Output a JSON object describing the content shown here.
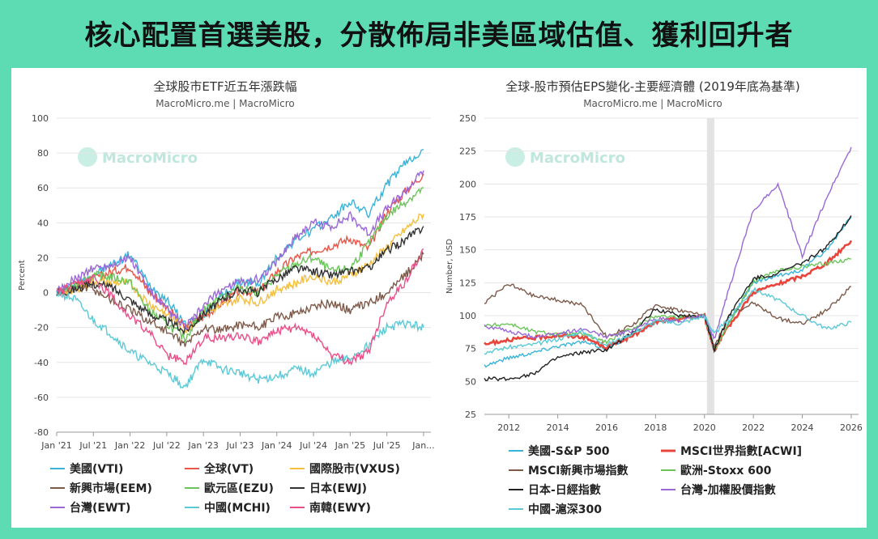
{
  "headline": "核心配置首選美股，分散佈局非美區域估值、獲利回升者",
  "watermark": "MacroMicro",
  "chart_data": [
    {
      "type": "line",
      "title": "全球股市ETF近五年漲跌幅",
      "subtitle": "MacroMicro.me | MacroMicro",
      "ylabel": "Percent",
      "xlabel": "",
      "ylim": [
        -80,
        100
      ],
      "yticks": [
        100,
        80,
        60,
        40,
        20,
        0,
        -20,
        -40,
        -60,
        -80
      ],
      "x_tick_labels": [
        "Jan '21",
        "Jul '21",
        "Jan '22",
        "Jul '22",
        "Jan '23",
        "Jul '23",
        "Jan '24",
        "Jul '24",
        "Jan '25",
        "Jul '25",
        "Jan..."
      ],
      "x": [
        2021.0,
        2021.25,
        2021.5,
        2021.75,
        2022.0,
        2022.25,
        2022.5,
        2022.75,
        2023.0,
        2023.25,
        2023.5,
        2023.75,
        2024.0,
        2024.25,
        2024.5,
        2024.75,
        2025.0,
        2025.25,
        2025.5,
        2025.75,
        2026.0
      ],
      "xlim": [
        2021.0,
        2026.1
      ],
      "legend_position": "bottom",
      "series": [
        {
          "name": "美國(VTI)",
          "color": "#39b3d8",
          "values": [
            0,
            4,
            10,
            16,
            22,
            5,
            -4,
            -18,
            -13,
            -2,
            6,
            5,
            20,
            30,
            36,
            43,
            52,
            45,
            62,
            74,
            82
          ]
        },
        {
          "name": "全球(VT)",
          "color": "#e8564a",
          "values": [
            0,
            3,
            8,
            12,
            15,
            1,
            -8,
            -20,
            -14,
            -6,
            1,
            0,
            12,
            20,
            24,
            27,
            31,
            25,
            46,
            58,
            68
          ]
        },
        {
          "name": "國際股市(VXUS)",
          "color": "#f4bf3e",
          "values": [
            0,
            2,
            6,
            6,
            5,
            -6,
            -12,
            -22,
            -12,
            -8,
            -3,
            -6,
            2,
            5,
            10,
            6,
            10,
            16,
            26,
            36,
            45
          ]
        },
        {
          "name": "新興市場(EEM)",
          "color": "#7d5a4a",
          "values": [
            0,
            4,
            2,
            -4,
            -10,
            -16,
            -22,
            -30,
            -20,
            -22,
            -18,
            -20,
            -14,
            -12,
            -8,
            -6,
            -10,
            -6,
            0,
            10,
            22
          ]
        },
        {
          "name": "歐元區(EZU)",
          "color": "#6bc55a",
          "values": [
            0,
            4,
            10,
            9,
            6,
            -10,
            -18,
            -26,
            -10,
            -2,
            3,
            0,
            10,
            16,
            20,
            12,
            14,
            28,
            44,
            52,
            60
          ]
        },
        {
          "name": "日本(EWJ)",
          "color": "#333333",
          "values": [
            0,
            2,
            5,
            3,
            -4,
            -12,
            -16,
            -22,
            -12,
            -4,
            2,
            0,
            8,
            14,
            12,
            10,
            12,
            14,
            24,
            30,
            38
          ]
        },
        {
          "name": "台灣(EWT)",
          "color": "#9b68d6",
          "values": [
            0,
            8,
            14,
            16,
            20,
            2,
            -10,
            -20,
            -8,
            2,
            6,
            8,
            18,
            32,
            40,
            38,
            44,
            34,
            48,
            58,
            70
          ]
        },
        {
          "name": "中國(MCHI)",
          "color": "#5dc9d6",
          "values": [
            0,
            -4,
            -16,
            -24,
            -34,
            -40,
            -46,
            -54,
            -38,
            -44,
            -46,
            -50,
            -48,
            -44,
            -46,
            -40,
            -38,
            -30,
            -20,
            -18,
            -20
          ]
        },
        {
          "name": "南韓(EWY)",
          "color": "#e94f88",
          "values": [
            0,
            4,
            8,
            -2,
            -14,
            -22,
            -36,
            -40,
            -26,
            -26,
            -24,
            -28,
            -22,
            -20,
            -24,
            -36,
            -40,
            -34,
            -6,
            6,
            25
          ]
        }
      ]
    },
    {
      "type": "line",
      "title": "全球-股市預估EPS變化-主要經濟體 (2019年底為基準)",
      "subtitle": "MacroMicro.me | MacroMicro",
      "ylabel": "Number, USD",
      "xlabel": "",
      "ylim": [
        25,
        250
      ],
      "yticks": [
        250,
        225,
        200,
        175,
        150,
        125,
        100,
        75,
        50,
        25
      ],
      "x_tick_labels": [
        "2012",
        "2014",
        "2016",
        "2018",
        "2020",
        "2022",
        "2024",
        "2026"
      ],
      "x_tick_values": [
        2012,
        2014,
        2016,
        2018,
        2020,
        2022,
        2024,
        2026
      ],
      "xlim": [
        2011.0,
        2026.3
      ],
      "shaded_band": [
        2020.1,
        2020.4
      ],
      "x": [
        2011.0,
        2012.0,
        2013.0,
        2014.0,
        2015.0,
        2016.0,
        2017.0,
        2018.0,
        2019.0,
        2020.0,
        2020.4,
        2021.0,
        2022.0,
        2023.0,
        2024.0,
        2025.0,
        2026.0
      ],
      "legend_position": "bottom",
      "series": [
        {
          "name": "美國-S&P 500",
          "color": "#39b3d8",
          "values": [
            62,
            68,
            72,
            77,
            80,
            75,
            85,
            95,
            98,
            100,
            76,
            95,
            125,
            130,
            135,
            150,
            175
          ]
        },
        {
          "name": "MSCI世界指數[ACWI]",
          "color": "#e8453c",
          "values": [
            78,
            82,
            83,
            85,
            84,
            76,
            84,
            95,
            98,
            100,
            74,
            92,
            118,
            124,
            130,
            140,
            157
          ]
        },
        {
          "name": "MSCI新興市場指數",
          "color": "#7d5a4a",
          "values": [
            110,
            124,
            115,
            112,
            108,
            84,
            92,
            108,
            104,
            100,
            76,
            100,
            110,
            98,
            94,
            104,
            122
          ]
        },
        {
          "name": "歐洲-Stoxx 600",
          "color": "#6bc55a",
          "values": [
            92,
            94,
            88,
            86,
            86,
            80,
            90,
            100,
            99,
            100,
            74,
            94,
            126,
            134,
            137,
            140,
            143
          ]
        },
        {
          "name": "日本-日經指數",
          "color": "#222222",
          "values": [
            52,
            52,
            56,
            68,
            72,
            74,
            86,
            105,
            100,
            100,
            74,
            100,
            128,
            132,
            140,
            152,
            176
          ]
        },
        {
          "name": "台灣-加權股價指數",
          "color": "#9b68d6",
          "values": [
            92,
            88,
            84,
            86,
            90,
            84,
            88,
            98,
            96,
            100,
            82,
            120,
            180,
            200,
            145,
            190,
            228
          ]
        },
        {
          "name": "中國-滬深300",
          "color": "#5dc9d6",
          "values": [
            72,
            76,
            78,
            82,
            88,
            78,
            86,
            96,
            94,
            100,
            86,
            98,
            120,
            112,
            100,
            90,
            95
          ]
        }
      ]
    }
  ]
}
